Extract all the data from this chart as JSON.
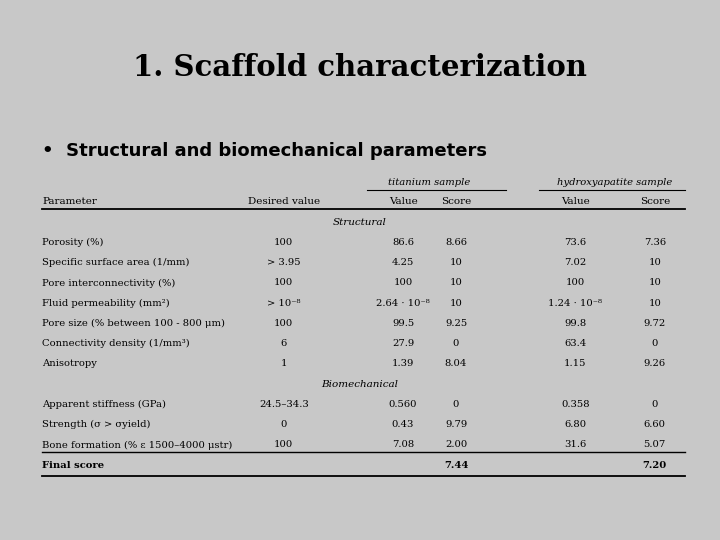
{
  "title": "1. Scaffold characterization",
  "subtitle": "•  Structural and biomechanical parameters",
  "background_color": "#c8c8c8",
  "col_headers_top": [
    "titanium sample",
    "hydroxyapatite sample"
  ],
  "col_headers": [
    "Parameter",
    "Desired value",
    "Value",
    "Score",
    "Value",
    "Score"
  ],
  "section_structural": "Structural",
  "section_biomechanical": "Biomechanical",
  "rows": [
    [
      "Porosity (%)",
      "100",
      "86.6",
      "8.66",
      "73.6",
      "7.36"
    ],
    [
      "Specific surface area (1/mm)",
      "> 3.95",
      "4.25",
      "10",
      "7.02",
      "10"
    ],
    [
      "Pore interconnectivity (%)",
      "100",
      "100",
      "10",
      "100",
      "10"
    ],
    [
      "Fluid permeability (mm²)",
      "> 10⁻⁸",
      "2.64 · 10⁻⁸",
      "10",
      "1.24 · 10⁻⁸",
      "10"
    ],
    [
      "Pore size (% between 100 - 800 μm)",
      "100",
      "99.5",
      "9.25",
      "99.8",
      "9.72"
    ],
    [
      "Connectivity density (1/mm³)",
      "6",
      "27.9",
      "0",
      "63.4",
      "0"
    ],
    [
      "Anisotropy",
      "1",
      "1.39",
      "8.04",
      "1.15",
      "9.26"
    ]
  ],
  "rows_bio": [
    [
      "Apparent stiffness (GPa)",
      "24.5–34.3",
      "0.560",
      "0",
      "0.358",
      "0"
    ],
    [
      "Strength (σ > σyield)",
      "0",
      "0.43",
      "9.79",
      "6.80",
      "6.60"
    ],
    [
      "Bone formation (% ε 1500–4000 μstr)",
      "100",
      "7.08",
      "2.00",
      "31.6",
      "5.07"
    ]
  ],
  "final_score": [
    "Final score",
    "",
    "",
    "7.44",
    "",
    "7.20"
  ]
}
